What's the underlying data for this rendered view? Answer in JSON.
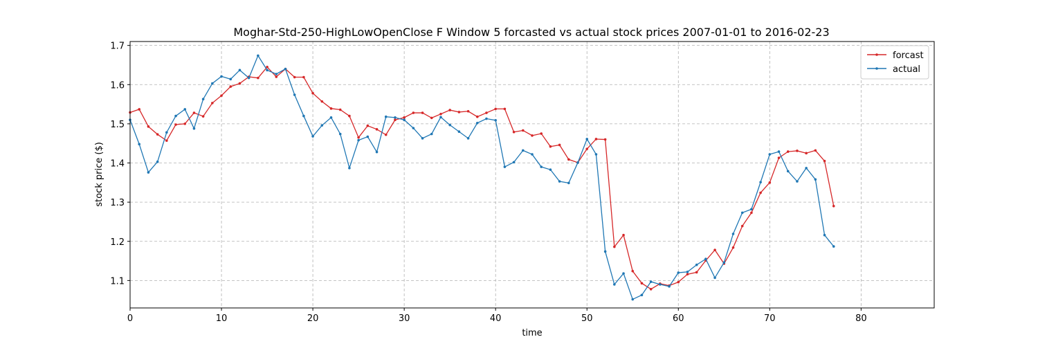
{
  "chart_data": {
    "type": "line",
    "title": "Moghar-Std-250-HighLowOpenClose F Window 5 forcasted vs actual stock prices 2007-01-01 to 2016-02-23",
    "xlabel": "time",
    "ylabel": "stock price ($)",
    "xlim": [
      0,
      88
    ],
    "ylim": [
      1.03,
      1.71
    ],
    "xticks": [
      0,
      10,
      20,
      30,
      40,
      50,
      60,
      70,
      80
    ],
    "yticks": [
      1.1,
      1.2,
      1.3,
      1.4,
      1.5,
      1.6,
      1.7
    ],
    "grid": true,
    "legend_position": "top-right",
    "series": [
      {
        "name": "forcast",
        "color": "#d62728",
        "values": [
          1.529,
          1.537,
          1.493,
          1.473,
          1.457,
          1.498,
          1.5,
          1.528,
          1.519,
          1.553,
          1.572,
          1.595,
          1.603,
          1.62,
          1.617,
          1.645,
          1.62,
          1.64,
          1.619,
          1.619,
          1.578,
          1.557,
          1.539,
          1.536,
          1.52,
          1.465,
          1.495,
          1.486,
          1.472,
          1.51,
          1.516,
          1.528,
          1.528,
          1.515,
          1.525,
          1.535,
          1.53,
          1.532,
          1.518,
          1.528,
          1.538,
          1.538,
          1.479,
          1.483,
          1.47,
          1.475,
          1.442,
          1.446,
          1.409,
          1.401,
          1.436,
          1.461,
          1.46,
          1.186,
          1.216,
          1.124,
          1.093,
          1.078,
          1.092,
          1.087,
          1.096,
          1.116,
          1.121,
          1.151,
          1.178,
          1.143,
          1.184,
          1.239,
          1.273,
          1.324,
          1.35,
          1.413,
          1.429,
          1.431,
          1.425,
          1.432,
          1.405,
          1.29
        ]
      },
      {
        "name": "actual",
        "color": "#1f77b4",
        "values": [
          1.51,
          1.448,
          1.376,
          1.403,
          1.478,
          1.52,
          1.537,
          1.488,
          1.563,
          1.603,
          1.621,
          1.614,
          1.637,
          1.617,
          1.674,
          1.637,
          1.627,
          1.64,
          1.574,
          1.52,
          1.468,
          1.496,
          1.516,
          1.474,
          1.387,
          1.458,
          1.467,
          1.428,
          1.518,
          1.516,
          1.51,
          1.489,
          1.463,
          1.474,
          1.517,
          1.497,
          1.48,
          1.463,
          1.502,
          1.513,
          1.509,
          1.39,
          1.402,
          1.432,
          1.422,
          1.39,
          1.383,
          1.353,
          1.349,
          1.401,
          1.461,
          1.422,
          1.174,
          1.09,
          1.118,
          1.052,
          1.063,
          1.097,
          1.09,
          1.085,
          1.12,
          1.122,
          1.14,
          1.155,
          1.107,
          1.146,
          1.219,
          1.273,
          1.282,
          1.351,
          1.422,
          1.429,
          1.379,
          1.353,
          1.387,
          1.358,
          1.216,
          1.187
        ]
      }
    ]
  }
}
